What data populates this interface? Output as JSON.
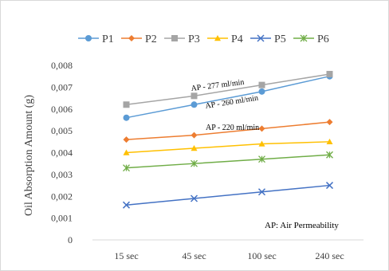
{
  "chart_data": {
    "type": "line",
    "title": "",
    "xlabel": "",
    "ylabel": "Oil Absorption Amount (g)",
    "categories": [
      "15 sec",
      "45 sec",
      "100 sec",
      "240 sec"
    ],
    "ylim": [
      0,
      0.008
    ],
    "yticks": [
      "0",
      "0,001",
      "0,002",
      "0,003",
      "0,004",
      "0,005",
      "0,006",
      "0,007",
      "0,008"
    ],
    "grid": false,
    "legend_position": "top",
    "series": [
      {
        "name": "P1",
        "values": [
          0.0056,
          0.0062,
          0.0068,
          0.0075
        ],
        "color": "#5b9bd5",
        "marker": "circle"
      },
      {
        "name": "P2",
        "values": [
          0.0046,
          0.0048,
          0.0051,
          0.0054
        ],
        "color": "#ed7d31",
        "marker": "diamond"
      },
      {
        "name": "P3",
        "values": [
          0.0062,
          0.0066,
          0.0071,
          0.0076
        ],
        "color": "#a5a5a5",
        "marker": "square"
      },
      {
        "name": "P4",
        "values": [
          0.004,
          0.0042,
          0.0044,
          0.0045
        ],
        "color": "#ffc000",
        "marker": "triangle"
      },
      {
        "name": "P5",
        "values": [
          0.0016,
          0.0019,
          0.0022,
          0.0025
        ],
        "color": "#4472c4",
        "marker": "x"
      },
      {
        "name": "P6",
        "values": [
          0.0033,
          0.0035,
          0.0037,
          0.0039
        ],
        "color": "#70ad47",
        "marker": "star"
      }
    ],
    "annotations": [
      "AP - 277 ml/min",
      "AP - 260 ml/min",
      "AP - 220 ml/min"
    ],
    "note": "AP: Air Permeability"
  }
}
